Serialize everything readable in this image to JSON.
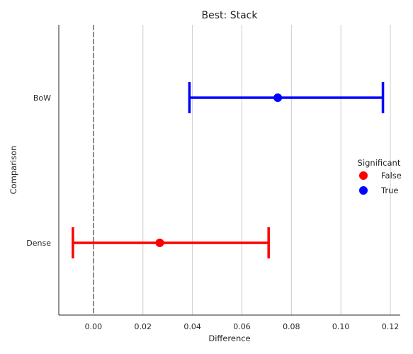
{
  "chart_data": {
    "type": "errorbar",
    "title": "Best: Stack",
    "xlabel": "Difference",
    "ylabel": "Comparison",
    "xlim": [
      -0.014,
      0.124
    ],
    "xticks": [
      0.0,
      0.02,
      0.04,
      0.06,
      0.08,
      0.1,
      0.12
    ],
    "xtick_labels": [
      "0.00",
      "0.02",
      "0.04",
      "0.06",
      "0.08",
      "0.10",
      "0.12"
    ],
    "grid": "vertical",
    "reference_line": 0.0,
    "categories": [
      "BoW",
      "Dense"
    ],
    "points": [
      {
        "category": "BoW",
        "estimate": 0.0745,
        "lower": 0.0388,
        "upper": 0.117,
        "significant": "True"
      },
      {
        "category": "Dense",
        "estimate": 0.0268,
        "lower": -0.0083,
        "upper": 0.0708,
        "significant": "False"
      }
    ],
    "legend": {
      "title": "Significant",
      "placement": "center-right",
      "entries": [
        {
          "label": "False",
          "color": "#ff0000"
        },
        {
          "label": "True",
          "color": "#0000ff"
        }
      ]
    },
    "colors": {
      "False": "#ff0000",
      "True": "#0000ff",
      "grid": "#cccccc",
      "reference": "#808080"
    }
  }
}
